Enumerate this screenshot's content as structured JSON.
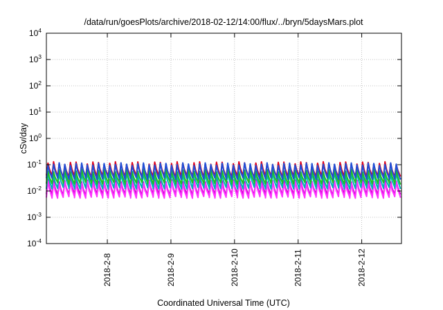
{
  "chart_data": {
    "type": "line",
    "title": "/data/run/goesPlots/archive/2018-02-12/14:00/flux/../bryn/5daysMars.plot",
    "xlabel": "Coordinated Universal Time (UTC)",
    "ylabel": "cSv/day",
    "yscale": "log",
    "ylim": [
      0.0001,
      10000
    ],
    "xlim": [
      "2018-02-07 01:00",
      "2018-02-12 15:00"
    ],
    "grid": true,
    "y_ticks": [
      {
        "base": "10",
        "exp": "-4",
        "value": 0.0001
      },
      {
        "base": "10",
        "exp": "-3",
        "value": 0.001
      },
      {
        "base": "10",
        "exp": "-2",
        "value": 0.01
      },
      {
        "base": "10",
        "exp": "-1",
        "value": 0.1
      },
      {
        "base": "10",
        "exp": "0",
        "value": 1
      },
      {
        "base": "10",
        "exp": "1",
        "value": 10
      },
      {
        "base": "10",
        "exp": "2",
        "value": 100
      },
      {
        "base": "10",
        "exp": "3",
        "value": 1000
      },
      {
        "base": "10",
        "exp": "4",
        "value": 10000
      }
    ],
    "x_ticks": [
      {
        "label": "2018-2-8",
        "date": "2018-02-08 00:00"
      },
      {
        "label": "2018-2-9",
        "date": "2018-02-09 00:00"
      },
      {
        "label": "2018-2-10",
        "date": "2018-02-10 00:00"
      },
      {
        "label": "2018-2-11",
        "date": "2018-02-11 00:00"
      },
      {
        "label": "2018-2-12",
        "date": "2018-02-12 00:00"
      }
    ],
    "pattern": {
      "period_hours": 2.12,
      "cycles_start_hour": 1,
      "cycles": 64
    },
    "series": [
      {
        "color": "#e0001b",
        "peak": 0.115,
        "trough": 0.036
      },
      {
        "color": "#cc00cc",
        "peak": 0.025,
        "trough": 0.0072
      },
      {
        "color": "#ff33ff",
        "peak": 0.021,
        "trough": 0.0058
      },
      {
        "color": "#00b4b4",
        "peak": 0.045,
        "trough": 0.013
      },
      {
        "color": "#20c020",
        "peak": 0.06,
        "trough": 0.02
      },
      {
        "color": "#1f4fd8",
        "peak": 0.105,
        "trough": 0.03
      }
    ]
  }
}
